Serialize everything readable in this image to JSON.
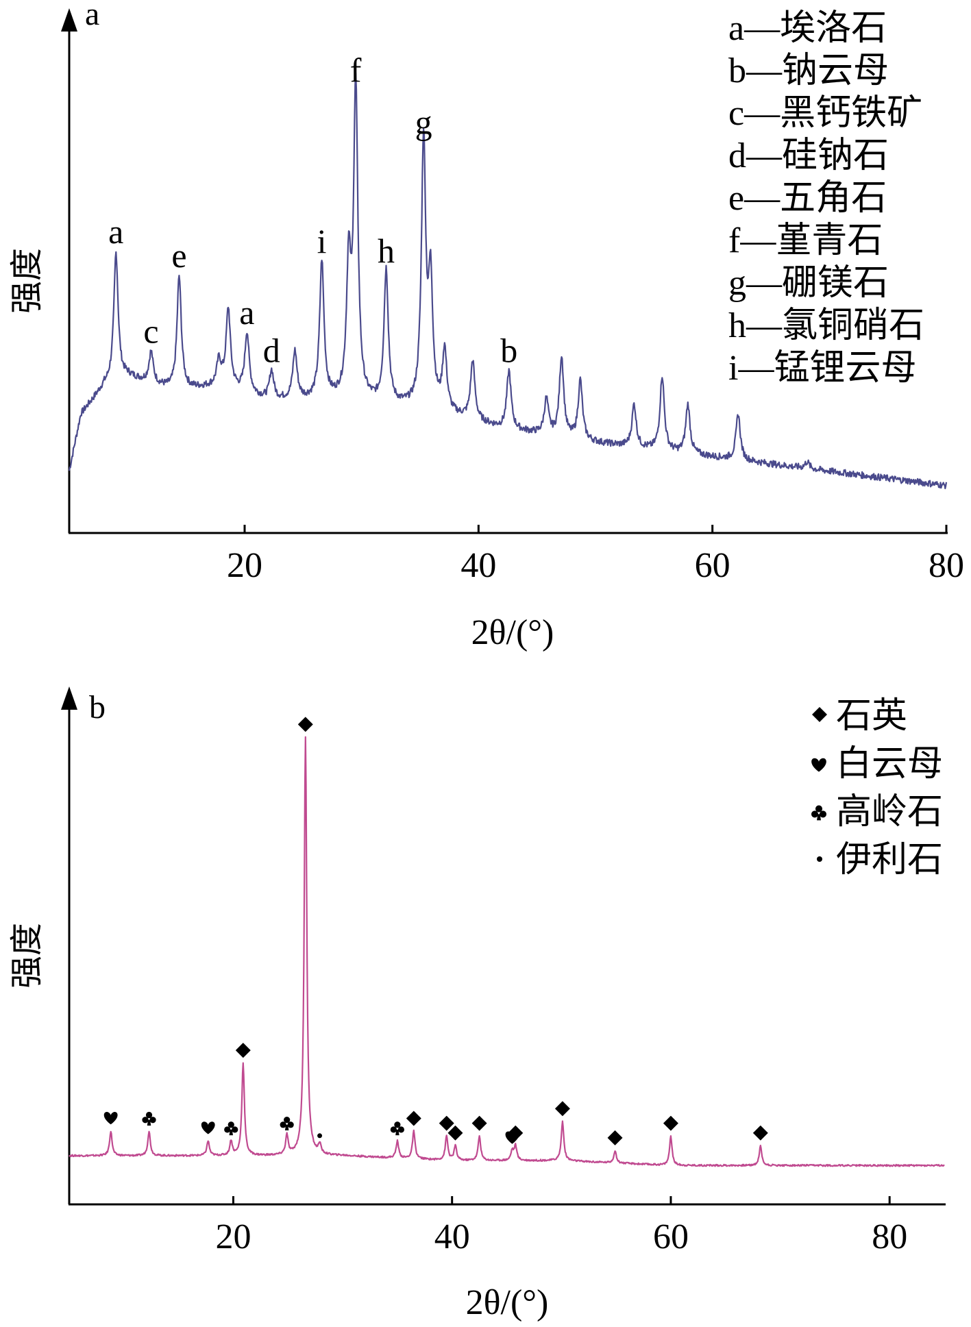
{
  "colors": {
    "panel_a_line": "#4a4a8c",
    "panel_b_line": "#c04a90",
    "axis": "#000000"
  },
  "panels": [
    {
      "label": "a",
      "ylabel": "强度",
      "xlabel": "2θ/(°)",
      "legend": [
        {
          "text": "a—埃洛石"
        },
        {
          "text": "b—钠云母"
        },
        {
          "text": "c—黑钙铁矿"
        },
        {
          "text": "d—硅钠石"
        },
        {
          "text": "e—五角石"
        },
        {
          "text": "f—堇青石"
        },
        {
          "text": "g—硼镁石"
        },
        {
          "text": "h—氯铜硝石"
        },
        {
          "text": "i—锰锂云母"
        }
      ]
    },
    {
      "label": "b",
      "ylabel": "强度",
      "xlabel": "2θ/(°)",
      "legend": [
        {
          "symbol": "diamond",
          "text": "石英"
        },
        {
          "symbol": "heart",
          "text": "白云母"
        },
        {
          "symbol": "club",
          "text": "高岭石"
        },
        {
          "symbol": "dot",
          "text": "伊利石"
        }
      ]
    }
  ],
  "chart_data": [
    {
      "type": "line",
      "xlabel": "2θ/(°)",
      "ylabel": "强度",
      "xlim": [
        5,
        80
      ],
      "ylim": [
        0,
        100
      ],
      "x_ticks": [
        20,
        40,
        60,
        80
      ],
      "grid": false,
      "legend_position": "top-right",
      "baseline": [
        [
          5,
          13
        ],
        [
          6,
          25
        ],
        [
          8,
          31
        ],
        [
          10,
          33
        ],
        [
          14,
          30
        ],
        [
          18,
          31
        ],
        [
          22,
          28
        ],
        [
          28,
          28
        ],
        [
          36,
          26
        ],
        [
          42,
          22
        ],
        [
          50,
          19
        ],
        [
          60,
          16
        ],
        [
          70,
          13
        ],
        [
          80,
          10
        ]
      ],
      "peaks": [
        {
          "x": 9.0,
          "y": 59,
          "label": "a"
        },
        {
          "x": 12.0,
          "y": 38,
          "label": "c"
        },
        {
          "x": 14.4,
          "y": 54,
          "label": "e"
        },
        {
          "x": 17.8,
          "y": 36,
          "label": ""
        },
        {
          "x": 18.6,
          "y": 47,
          "label": ""
        },
        {
          "x": 20.2,
          "y": 42,
          "label": "a"
        },
        {
          "x": 22.3,
          "y": 34,
          "label": "d"
        },
        {
          "x": 24.3,
          "y": 38,
          "label": ""
        },
        {
          "x": 26.6,
          "y": 57,
          "label": "i"
        },
        {
          "x": 28.9,
          "y": 55,
          "label": ""
        },
        {
          "x": 29.5,
          "y": 93,
          "label": "f"
        },
        {
          "x": 32.1,
          "y": 55,
          "label": "h"
        },
        {
          "x": 35.3,
          "y": 82,
          "label": "g"
        },
        {
          "x": 35.9,
          "y": 52,
          "label": ""
        },
        {
          "x": 37.1,
          "y": 38,
          "label": ""
        },
        {
          "x": 39.5,
          "y": 36,
          "label": ""
        },
        {
          "x": 42.6,
          "y": 34,
          "label": "b"
        },
        {
          "x": 45.8,
          "y": 28,
          "label": ""
        },
        {
          "x": 47.1,
          "y": 37,
          "label": ""
        },
        {
          "x": 48.7,
          "y": 32,
          "label": ""
        },
        {
          "x": 53.3,
          "y": 27,
          "label": ""
        },
        {
          "x": 55.7,
          "y": 33,
          "label": ""
        },
        {
          "x": 57.9,
          "y": 27,
          "label": ""
        },
        {
          "x": 62.2,
          "y": 25,
          "label": ""
        },
        {
          "x": 68.1,
          "y": 15,
          "label": ""
        }
      ]
    },
    {
      "type": "line",
      "xlabel": "2θ/(°)",
      "ylabel": "强度",
      "xlim": [
        5,
        85
      ],
      "ylim": [
        0,
        100
      ],
      "x_ticks": [
        20,
        40,
        60,
        80
      ],
      "grid": false,
      "legend_position": "top-right",
      "baseline": [
        [
          5,
          10
        ],
        [
          10,
          10
        ],
        [
          20,
          10
        ],
        [
          30,
          10
        ],
        [
          40,
          9
        ],
        [
          50,
          9
        ],
        [
          60,
          8
        ],
        [
          70,
          8
        ],
        [
          85,
          8
        ]
      ],
      "peaks": [
        {
          "x": 8.8,
          "y": 15,
          "marker": "heart"
        },
        {
          "x": 12.3,
          "y": 15,
          "marker": "club"
        },
        {
          "x": 17.7,
          "y": 13,
          "marker": "heart"
        },
        {
          "x": 19.8,
          "y": 13,
          "marker": "club"
        },
        {
          "x": 20.9,
          "y": 29,
          "marker": "diamond"
        },
        {
          "x": 24.9,
          "y": 14,
          "marker": "club"
        },
        {
          "x": 26.6,
          "y": 96,
          "marker": "diamond"
        },
        {
          "x": 27.9,
          "y": 12,
          "marker": "dot"
        },
        {
          "x": 35.0,
          "y": 13,
          "marker": "club"
        },
        {
          "x": 36.5,
          "y": 15,
          "marker": "diamond"
        },
        {
          "x": 39.5,
          "y": 14,
          "marker": "diamond"
        },
        {
          "x": 40.3,
          "y": 12,
          "marker": "diamond"
        },
        {
          "x": 42.5,
          "y": 14,
          "marker": "diamond"
        },
        {
          "x": 45.5,
          "y": 11,
          "marker": "heart"
        },
        {
          "x": 45.8,
          "y": 12,
          "marker": "diamond"
        },
        {
          "x": 50.1,
          "y": 17,
          "marker": "diamond"
        },
        {
          "x": 54.9,
          "y": 11,
          "marker": "diamond"
        },
        {
          "x": 60.0,
          "y": 14,
          "marker": "diamond"
        },
        {
          "x": 68.2,
          "y": 12,
          "marker": "diamond"
        }
      ]
    }
  ]
}
